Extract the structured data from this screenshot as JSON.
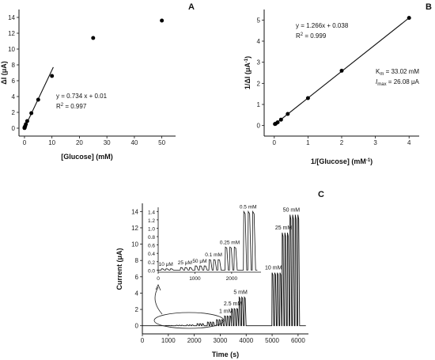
{
  "chart_data": [
    {
      "id": "A",
      "type": "scatter",
      "panel_label": "A",
      "xlabel": "[Glucose] (mM)",
      "ylabel": "ΔI (μA)",
      "xlim": [
        -2,
        55
      ],
      "ylim": [
        -1,
        15
      ],
      "xticks": [
        "0",
        "10",
        "20",
        "30",
        "40",
        "50"
      ],
      "yticks": [
        "0",
        "2",
        "4",
        "6",
        "8",
        "10",
        "12",
        "14"
      ],
      "points": [
        {
          "x": 0.01,
          "y": 0.02
        },
        {
          "x": 0.025,
          "y": 0.05
        },
        {
          "x": 0.05,
          "y": 0.08
        },
        {
          "x": 0.1,
          "y": 0.12
        },
        {
          "x": 0.25,
          "y": 0.25
        },
        {
          "x": 0.5,
          "y": 0.5
        },
        {
          "x": 1,
          "y": 0.9
        },
        {
          "x": 2.5,
          "y": 1.9
        },
        {
          "x": 5,
          "y": 3.6
        },
        {
          "x": 10,
          "y": 6.6
        },
        {
          "x": 25,
          "y": 11.4
        },
        {
          "x": 50,
          "y": 13.6
        }
      ],
      "fit": {
        "x": [
          0,
          10.5
        ],
        "slope": 0.734,
        "intercept": 0.01
      },
      "annotation": [
        "y = 0.734 x + 0.01",
        "R² = 0.997"
      ]
    },
    {
      "id": "B",
      "type": "scatter",
      "panel_label": "B",
      "xlabel": "1/[Glucose] (mM⁻¹)",
      "ylabel": "1/ΔI (μA⁻¹)",
      "xlim": [
        -0.3,
        4.3
      ],
      "ylim": [
        -0.5,
        5.5
      ],
      "xticks": [
        "0",
        "1",
        "2",
        "3",
        "4"
      ],
      "yticks": [
        "0",
        "1",
        "2",
        "3",
        "4",
        "5"
      ],
      "points": [
        {
          "x": 0.02,
          "y": 0.073
        },
        {
          "x": 0.04,
          "y": 0.088
        },
        {
          "x": 0.1,
          "y": 0.15
        },
        {
          "x": 0.2,
          "y": 0.28
        },
        {
          "x": 0.4,
          "y": 0.55
        },
        {
          "x": 1,
          "y": 1.3
        },
        {
          "x": 2,
          "y": 2.6
        },
        {
          "x": 4,
          "y": 5.1
        }
      ],
      "fit": {
        "x": [
          0,
          4
        ],
        "slope": 1.266,
        "intercept": 0.038
      },
      "annotation": [
        "y = 1.266x + 0.038",
        "R² = 0.999"
      ],
      "annotation2": [
        "Km = 33.02 mM",
        "Imax = 26.08 μA"
      ]
    },
    {
      "id": "C",
      "type": "line",
      "panel_label": "C",
      "xlabel": "Time (s)",
      "ylabel": "Current (μA)",
      "xlim": [
        0,
        6400
      ],
      "ylim": [
        -1,
        15
      ],
      "xticks": [
        "0",
        "1000",
        "2000",
        "3000",
        "4000",
        "5000",
        "6000"
      ],
      "yticks": [
        "0",
        "2",
        "4",
        "6",
        "8",
        "10",
        "12",
        "14"
      ],
      "steps": [
        {
          "label": "",
          "n": 3,
          "t_start": 900,
          "peak": 0.03
        },
        {
          "label": "",
          "n": 3,
          "t_start": 1300,
          "peak": 0.06
        },
        {
          "label": "",
          "n": 3,
          "t_start": 1700,
          "peak": 0.1
        },
        {
          "label": "",
          "n": 3,
          "t_start": 2100,
          "peak": 0.25
        },
        {
          "label": "",
          "n": 3,
          "t_start": 2500,
          "peak": 0.45
        },
        {
          "label": "",
          "n": 3,
          "t_start": 2850,
          "peak": 0.75
        },
        {
          "label": "1 mM",
          "n": 3,
          "t_start": 3160,
          "peak": 1.2
        },
        {
          "label": "2.5 mM",
          "n": 3,
          "t_start": 3430,
          "peak": 2.1
        },
        {
          "label": "5 mM",
          "n": 3,
          "t_start": 3720,
          "peak": 3.5
        },
        {
          "label": "10 mM",
          "n": 4,
          "t_start": 4990,
          "peak": 6.5
        },
        {
          "label": "25 mM",
          "n": 3,
          "t_start": 5380,
          "peak": 11.4
        },
        {
          "label": "50 mM",
          "n": 4,
          "t_start": 5680,
          "peak": 13.6
        }
      ],
      "inset": {
        "xlim": [
          0,
          2800
        ],
        "ylim": [
          -0.05,
          1.5
        ],
        "xticks": [
          "0",
          "1000",
          "2000"
        ],
        "yticks": [
          "0.0",
          "0.2",
          "0.4",
          "0.6",
          "0.8",
          "1.0",
          "1.2",
          "1.4"
        ],
        "steps": [
          {
            "label": "10 μM",
            "n": 3,
            "t_start": 80,
            "peak": 0.03
          },
          {
            "label": "25 μM",
            "n": 3,
            "t_start": 600,
            "peak": 0.06
          },
          {
            "label": "50 μM",
            "n": 3,
            "t_start": 1000,
            "peak": 0.1
          },
          {
            "label": "0.1 mM",
            "n": 3,
            "t_start": 1380,
            "peak": 0.25
          },
          {
            "label": "0.25 mM",
            "n": 3,
            "t_start": 1820,
            "peak": 0.55
          },
          {
            "label": "0.5 mM",
            "n": 3,
            "t_start": 2320,
            "peak": 1.4
          }
        ]
      }
    }
  ]
}
